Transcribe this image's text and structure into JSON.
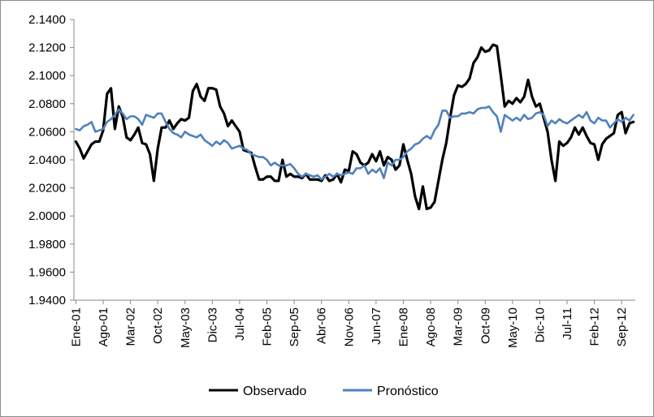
{
  "chart_data": {
    "type": "line",
    "title": "",
    "xlabel": "",
    "ylabel": "",
    "ylim": [
      1.94,
      2.14
    ],
    "y_ticks": [
      "2.1400",
      "2.1200",
      "2.1000",
      "2.0800",
      "2.0600",
      "2.0400",
      "2.0200",
      "2.0000",
      "1.9800",
      "1.9600",
      "1.9400"
    ],
    "y_tick_values": [
      2.14,
      2.12,
      2.1,
      2.08,
      2.06,
      2.04,
      2.02,
      2.0,
      1.98,
      1.96,
      1.94
    ],
    "x_start": "Ene-01",
    "x_count": 144,
    "x_ticks": [
      {
        "label": "Ene-01",
        "index": 0
      },
      {
        "label": "Ago-01",
        "index": 7
      },
      {
        "label": "Mar-02",
        "index": 14
      },
      {
        "label": "Oct-02",
        "index": 21
      },
      {
        "label": "May-03",
        "index": 28
      },
      {
        "label": "Dic-03",
        "index": 35
      },
      {
        "label": "Jul-04",
        "index": 42
      },
      {
        "label": "Feb-05",
        "index": 49
      },
      {
        "label": "Sep-05",
        "index": 56
      },
      {
        "label": "Abr-06",
        "index": 63
      },
      {
        "label": "Nov-06",
        "index": 70
      },
      {
        "label": "Jun-07",
        "index": 77
      },
      {
        "label": "Ene-08",
        "index": 84
      },
      {
        "label": "Ago-08",
        "index": 91
      },
      {
        "label": "Mar-09",
        "index": 98
      },
      {
        "label": "Oct-09",
        "index": 105
      },
      {
        "label": "May-10",
        "index": 112
      },
      {
        "label": "Dic-10",
        "index": 119
      },
      {
        "label": "Jul-11",
        "index": 126
      },
      {
        "label": "Feb-12",
        "index": 133
      },
      {
        "label": "Sep-12",
        "index": 140
      }
    ],
    "grid": false,
    "legend_position": "bottom",
    "series": [
      {
        "name": "Observado",
        "color": "#000000",
        "values": [
          2.053,
          2.048,
          2.041,
          2.046,
          2.051,
          2.053,
          2.053,
          2.061,
          2.087,
          2.091,
          2.062,
          2.078,
          2.071,
          2.056,
          2.054,
          2.058,
          2.063,
          2.052,
          2.051,
          2.044,
          2.025,
          2.048,
          2.063,
          2.063,
          2.068,
          2.062,
          2.066,
          2.069,
          2.068,
          2.07,
          2.089,
          2.094,
          2.085,
          2.082,
          2.091,
          2.091,
          2.09,
          2.078,
          2.073,
          2.064,
          2.068,
          2.064,
          2.06,
          2.047,
          2.046,
          2.045,
          2.035,
          2.026,
          2.026,
          2.028,
          2.028,
          2.025,
          2.025,
          2.04,
          2.028,
          2.03,
          2.028,
          2.028,
          2.027,
          2.03,
          2.026,
          2.026,
          2.026,
          2.025,
          2.029,
          2.025,
          2.026,
          2.03,
          2.024,
          2.033,
          2.032,
          2.046,
          2.044,
          2.038,
          2.036,
          2.038,
          2.044,
          2.039,
          2.046,
          2.036,
          2.042,
          2.04,
          2.033,
          2.036,
          2.051,
          2.04,
          2.03,
          2.014,
          2.005,
          2.021,
          2.005,
          2.006,
          2.01,
          2.025,
          2.04,
          2.052,
          2.07,
          2.086,
          2.093,
          2.092,
          2.094,
          2.098,
          2.109,
          2.113,
          2.12,
          2.117,
          2.118,
          2.122,
          2.121,
          2.1,
          2.078,
          2.082,
          2.08,
          2.084,
          2.081,
          2.085,
          2.097,
          2.085,
          2.078,
          2.08,
          2.07,
          2.06,
          2.04,
          2.025,
          2.053,
          2.05,
          2.052,
          2.056,
          2.063,
          2.058,
          2.063,
          2.057,
          2.052,
          2.051,
          2.04,
          2.051,
          2.055,
          2.057,
          2.059,
          2.072,
          2.074,
          2.059,
          2.066,
          2.067
        ]
      },
      {
        "name": "Pronóstico",
        "color": "#4f81bd",
        "values": [
          2.062,
          2.061,
          2.064,
          2.065,
          2.067,
          2.06,
          2.061,
          2.062,
          2.067,
          2.069,
          2.072,
          2.076,
          2.073,
          2.069,
          2.071,
          2.071,
          2.069,
          2.065,
          2.072,
          2.071,
          2.07,
          2.073,
          2.073,
          2.067,
          2.062,
          2.059,
          2.058,
          2.056,
          2.06,
          2.058,
          2.057,
          2.056,
          2.058,
          2.054,
          2.052,
          2.05,
          2.053,
          2.051,
          2.054,
          2.052,
          2.048,
          2.049,
          2.05,
          2.048,
          2.047,
          2.044,
          2.043,
          2.042,
          2.042,
          2.04,
          2.036,
          2.038,
          2.036,
          2.036,
          2.036,
          2.037,
          2.034,
          2.03,
          2.028,
          2.03,
          2.029,
          2.028,
          2.029,
          2.026,
          2.028,
          2.03,
          2.028,
          2.03,
          2.029,
          2.03,
          2.031,
          2.03,
          2.034,
          2.034,
          2.036,
          2.03,
          2.033,
          2.031,
          2.034,
          2.027,
          2.038,
          2.036,
          2.04,
          2.04,
          2.042,
          2.046,
          2.048,
          2.051,
          2.052,
          2.055,
          2.057,
          2.055,
          2.061,
          2.065,
          2.075,
          2.075,
          2.07,
          2.071,
          2.071,
          2.073,
          2.073,
          2.074,
          2.073,
          2.076,
          2.077,
          2.077,
          2.078,
          2.074,
          2.071,
          2.06,
          2.072,
          2.07,
          2.068,
          2.07,
          2.068,
          2.072,
          2.069,
          2.07,
          2.073,
          2.074,
          2.072,
          2.064,
          2.068,
          2.066,
          2.069,
          2.067,
          2.066,
          2.068,
          2.07,
          2.072,
          2.07,
          2.074,
          2.068,
          2.066,
          2.07,
          2.068,
          2.068,
          2.063,
          2.066,
          2.069,
          2.067,
          2.07,
          2.068,
          2.072
        ]
      }
    ]
  }
}
